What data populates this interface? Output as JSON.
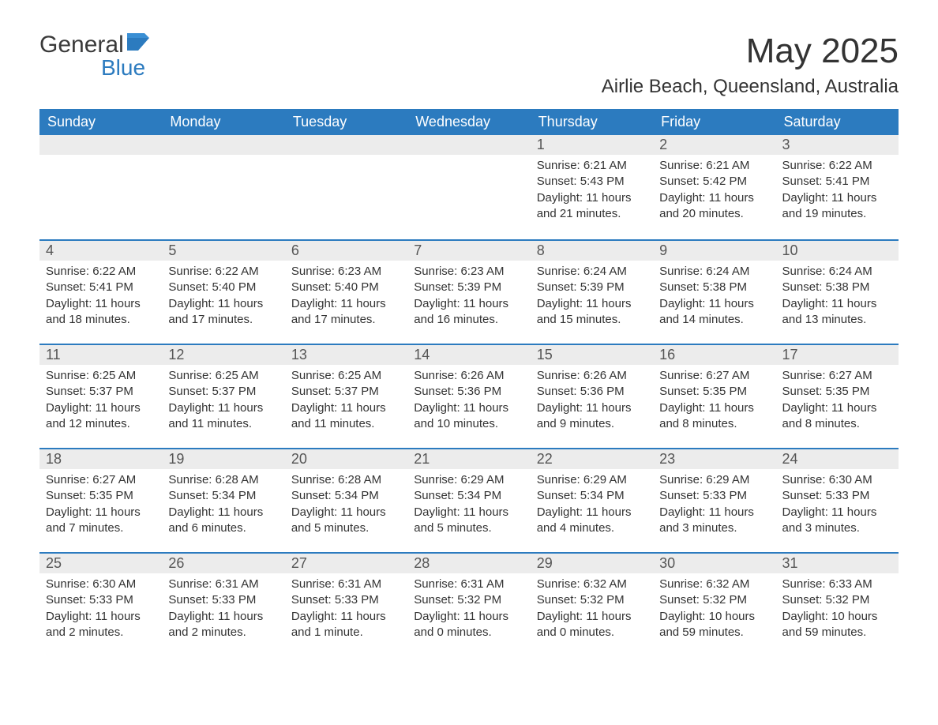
{
  "logo": {
    "text_top": "General",
    "text_bottom": "Blue"
  },
  "title": "May 2025",
  "location": "Airlie Beach, Queensland, Australia",
  "colors": {
    "header_bg": "#2c7bbf",
    "header_text": "#ffffff",
    "daynum_bg": "#ececec",
    "row_border": "#2c7bbf",
    "body_text": "#333333",
    "page_bg": "#ffffff"
  },
  "day_headers": [
    "Sunday",
    "Monday",
    "Tuesday",
    "Wednesday",
    "Thursday",
    "Friday",
    "Saturday"
  ],
  "weeks": [
    [
      {
        "n": "",
        "sunrise": "",
        "sunset": "",
        "daylight": ""
      },
      {
        "n": "",
        "sunrise": "",
        "sunset": "",
        "daylight": ""
      },
      {
        "n": "",
        "sunrise": "",
        "sunset": "",
        "daylight": ""
      },
      {
        "n": "",
        "sunrise": "",
        "sunset": "",
        "daylight": ""
      },
      {
        "n": "1",
        "sunrise": "Sunrise: 6:21 AM",
        "sunset": "Sunset: 5:43 PM",
        "daylight": "Daylight: 11 hours and 21 minutes."
      },
      {
        "n": "2",
        "sunrise": "Sunrise: 6:21 AM",
        "sunset": "Sunset: 5:42 PM",
        "daylight": "Daylight: 11 hours and 20 minutes."
      },
      {
        "n": "3",
        "sunrise": "Sunrise: 6:22 AM",
        "sunset": "Sunset: 5:41 PM",
        "daylight": "Daylight: 11 hours and 19 minutes."
      }
    ],
    [
      {
        "n": "4",
        "sunrise": "Sunrise: 6:22 AM",
        "sunset": "Sunset: 5:41 PM",
        "daylight": "Daylight: 11 hours and 18 minutes."
      },
      {
        "n": "5",
        "sunrise": "Sunrise: 6:22 AM",
        "sunset": "Sunset: 5:40 PM",
        "daylight": "Daylight: 11 hours and 17 minutes."
      },
      {
        "n": "6",
        "sunrise": "Sunrise: 6:23 AM",
        "sunset": "Sunset: 5:40 PM",
        "daylight": "Daylight: 11 hours and 17 minutes."
      },
      {
        "n": "7",
        "sunrise": "Sunrise: 6:23 AM",
        "sunset": "Sunset: 5:39 PM",
        "daylight": "Daylight: 11 hours and 16 minutes."
      },
      {
        "n": "8",
        "sunrise": "Sunrise: 6:24 AM",
        "sunset": "Sunset: 5:39 PM",
        "daylight": "Daylight: 11 hours and 15 minutes."
      },
      {
        "n": "9",
        "sunrise": "Sunrise: 6:24 AM",
        "sunset": "Sunset: 5:38 PM",
        "daylight": "Daylight: 11 hours and 14 minutes."
      },
      {
        "n": "10",
        "sunrise": "Sunrise: 6:24 AM",
        "sunset": "Sunset: 5:38 PM",
        "daylight": "Daylight: 11 hours and 13 minutes."
      }
    ],
    [
      {
        "n": "11",
        "sunrise": "Sunrise: 6:25 AM",
        "sunset": "Sunset: 5:37 PM",
        "daylight": "Daylight: 11 hours and 12 minutes."
      },
      {
        "n": "12",
        "sunrise": "Sunrise: 6:25 AM",
        "sunset": "Sunset: 5:37 PM",
        "daylight": "Daylight: 11 hours and 11 minutes."
      },
      {
        "n": "13",
        "sunrise": "Sunrise: 6:25 AM",
        "sunset": "Sunset: 5:37 PM",
        "daylight": "Daylight: 11 hours and 11 minutes."
      },
      {
        "n": "14",
        "sunrise": "Sunrise: 6:26 AM",
        "sunset": "Sunset: 5:36 PM",
        "daylight": "Daylight: 11 hours and 10 minutes."
      },
      {
        "n": "15",
        "sunrise": "Sunrise: 6:26 AM",
        "sunset": "Sunset: 5:36 PM",
        "daylight": "Daylight: 11 hours and 9 minutes."
      },
      {
        "n": "16",
        "sunrise": "Sunrise: 6:27 AM",
        "sunset": "Sunset: 5:35 PM",
        "daylight": "Daylight: 11 hours and 8 minutes."
      },
      {
        "n": "17",
        "sunrise": "Sunrise: 6:27 AM",
        "sunset": "Sunset: 5:35 PM",
        "daylight": "Daylight: 11 hours and 8 minutes."
      }
    ],
    [
      {
        "n": "18",
        "sunrise": "Sunrise: 6:27 AM",
        "sunset": "Sunset: 5:35 PM",
        "daylight": "Daylight: 11 hours and 7 minutes."
      },
      {
        "n": "19",
        "sunrise": "Sunrise: 6:28 AM",
        "sunset": "Sunset: 5:34 PM",
        "daylight": "Daylight: 11 hours and 6 minutes."
      },
      {
        "n": "20",
        "sunrise": "Sunrise: 6:28 AM",
        "sunset": "Sunset: 5:34 PM",
        "daylight": "Daylight: 11 hours and 5 minutes."
      },
      {
        "n": "21",
        "sunrise": "Sunrise: 6:29 AM",
        "sunset": "Sunset: 5:34 PM",
        "daylight": "Daylight: 11 hours and 5 minutes."
      },
      {
        "n": "22",
        "sunrise": "Sunrise: 6:29 AM",
        "sunset": "Sunset: 5:34 PM",
        "daylight": "Daylight: 11 hours and 4 minutes."
      },
      {
        "n": "23",
        "sunrise": "Sunrise: 6:29 AM",
        "sunset": "Sunset: 5:33 PM",
        "daylight": "Daylight: 11 hours and 3 minutes."
      },
      {
        "n": "24",
        "sunrise": "Sunrise: 6:30 AM",
        "sunset": "Sunset: 5:33 PM",
        "daylight": "Daylight: 11 hours and 3 minutes."
      }
    ],
    [
      {
        "n": "25",
        "sunrise": "Sunrise: 6:30 AM",
        "sunset": "Sunset: 5:33 PM",
        "daylight": "Daylight: 11 hours and 2 minutes."
      },
      {
        "n": "26",
        "sunrise": "Sunrise: 6:31 AM",
        "sunset": "Sunset: 5:33 PM",
        "daylight": "Daylight: 11 hours and 2 minutes."
      },
      {
        "n": "27",
        "sunrise": "Sunrise: 6:31 AM",
        "sunset": "Sunset: 5:33 PM",
        "daylight": "Daylight: 11 hours and 1 minute."
      },
      {
        "n": "28",
        "sunrise": "Sunrise: 6:31 AM",
        "sunset": "Sunset: 5:32 PM",
        "daylight": "Daylight: 11 hours and 0 minutes."
      },
      {
        "n": "29",
        "sunrise": "Sunrise: 6:32 AM",
        "sunset": "Sunset: 5:32 PM",
        "daylight": "Daylight: 11 hours and 0 minutes."
      },
      {
        "n": "30",
        "sunrise": "Sunrise: 6:32 AM",
        "sunset": "Sunset: 5:32 PM",
        "daylight": "Daylight: 10 hours and 59 minutes."
      },
      {
        "n": "31",
        "sunrise": "Sunrise: 6:33 AM",
        "sunset": "Sunset: 5:32 PM",
        "daylight": "Daylight: 10 hours and 59 minutes."
      }
    ]
  ]
}
